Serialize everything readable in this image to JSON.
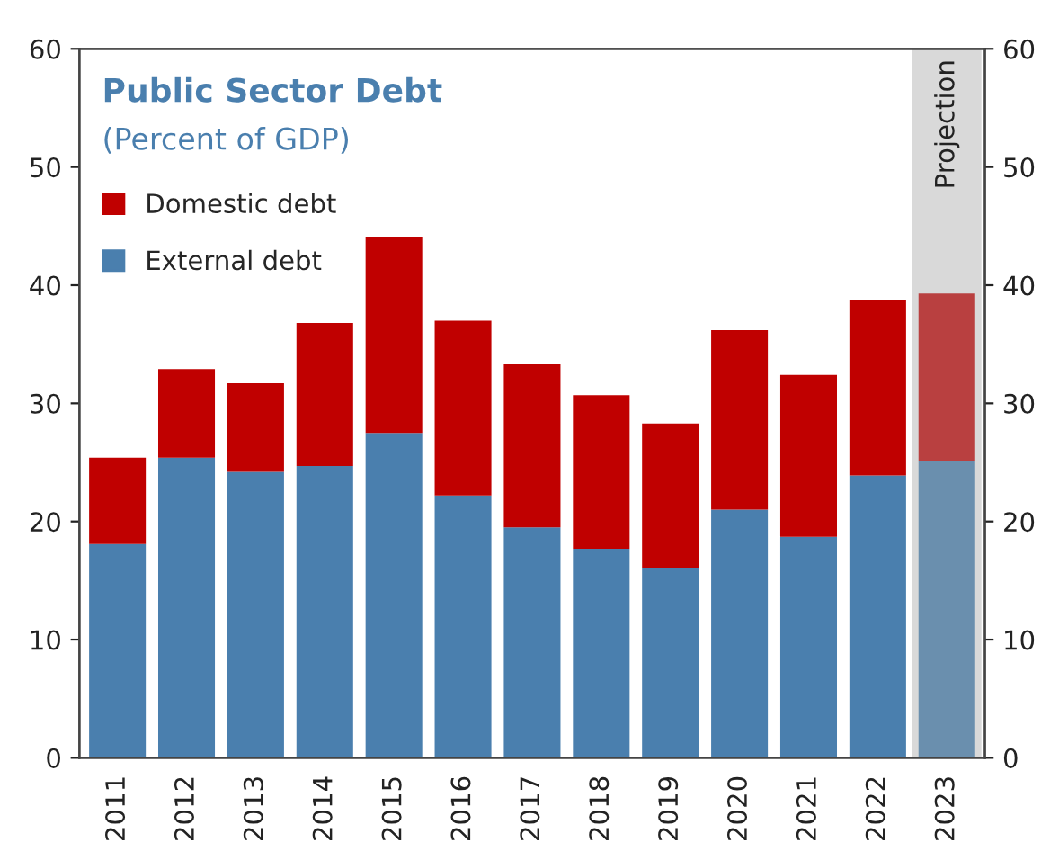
{
  "chart_data": {
    "type": "bar",
    "title": "Public Sector Debt",
    "subtitle": "(Percent of GDP)",
    "categories": [
      "2011",
      "2012",
      "2013",
      "2014",
      "2015",
      "2016",
      "2017",
      "2018",
      "2019",
      "2020",
      "2021",
      "2022",
      "2023"
    ],
    "stacked": true,
    "series": [
      {
        "name": "External debt",
        "color": "#4a7fae",
        "colors": [
          "#4a7fae",
          "#4a7fae",
          "#4a7fae",
          "#4a7fae",
          "#4a7fae",
          "#4a7fae",
          "#4a7fae",
          "#4a7fae",
          "#4a7fae",
          "#4a7fae",
          "#4a7fae",
          "#4a7fae",
          "#6a8fae"
        ],
        "values": [
          18.1,
          25.4,
          24.2,
          24.7,
          27.5,
          22.2,
          19.5,
          17.7,
          16.1,
          21.0,
          18.7,
          23.9,
          25.1
        ]
      },
      {
        "name": "Domestic debt",
        "color": "#c00000",
        "colors": [
          "#c00000",
          "#c00000",
          "#c00000",
          "#c00000",
          "#c00000",
          "#c00000",
          "#c00000",
          "#c00000",
          "#c00000",
          "#c00000",
          "#c00000",
          "#c00000",
          "#b94040"
        ],
        "values": [
          7.3,
          7.5,
          7.5,
          12.1,
          16.6,
          14.8,
          13.8,
          13.0,
          12.2,
          15.2,
          13.7,
          14.8,
          14.2
        ]
      }
    ],
    "ylim": [
      0,
      60
    ],
    "yticks": [
      0,
      10,
      20,
      30,
      40,
      50,
      60
    ],
    "y2lim": [
      0,
      60
    ],
    "y2ticks": [
      0,
      10,
      20,
      30,
      40,
      50,
      60
    ],
    "bands": [
      {
        "axis": "x",
        "from": "2023",
        "to": "2023",
        "label": "Projection",
        "color": "#d9d9d9"
      }
    ],
    "legend": "top left",
    "grid": false
  }
}
